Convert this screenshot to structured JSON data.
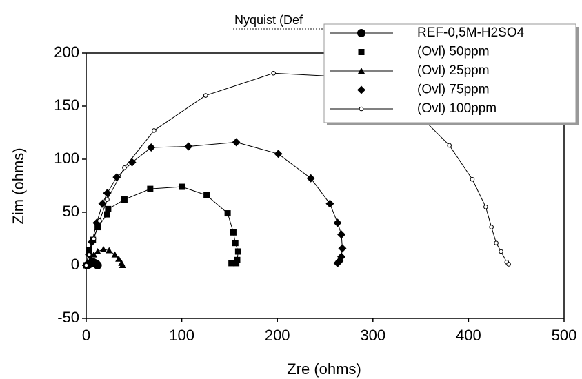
{
  "chart_data": {
    "type": "line",
    "title": "Nyquist (Def",
    "x_label": "Zre (ohms)",
    "y_label": "Zim (ohms)",
    "xlim": [
      0,
      500
    ],
    "xticks": [
      0,
      100,
      200,
      300,
      400,
      500
    ],
    "ylim": [
      -50,
      200
    ],
    "yticks": [
      -50,
      0,
      50,
      100,
      150,
      200
    ],
    "legend": "upper right",
    "series": [
      {
        "name": "REF-0,5M-H2SO4",
        "color": "#000000",
        "marker": "circle",
        "x": [
          1,
          3,
          5,
          7,
          9,
          11,
          12
        ],
        "values": [
          0,
          1,
          2,
          3,
          2,
          1,
          0
        ]
      },
      {
        "name": "(Ovl) 50ppm",
        "color": "#000000",
        "marker": "square",
        "x": [
          0,
          3,
          7,
          12,
          22,
          23,
          40,
          67,
          100,
          126,
          148,
          154,
          156,
          159,
          158,
          157,
          152
        ],
        "values": [
          0,
          14,
          24,
          36,
          48,
          53,
          62,
          72,
          74,
          66,
          49,
          31,
          21,
          13,
          5,
          2,
          2
        ]
      },
      {
        "name": "(Ovl) 25ppm",
        "color": "#000000",
        "marker": "triangle",
        "x": [
          2,
          5,
          8,
          12,
          18,
          24,
          30,
          34,
          37,
          38
        ],
        "values": [
          2,
          6,
          10,
          13,
          15,
          14,
          10,
          6,
          2,
          0
        ]
      },
      {
        "name": "(Ovl) 75ppm",
        "color": "#000000",
        "marker": "diamond",
        "x": [
          0,
          3,
          6,
          11,
          17,
          22,
          32,
          48,
          68,
          107,
          157,
          201,
          235,
          255,
          263,
          267,
          268,
          267,
          265,
          263
        ],
        "values": [
          0,
          10,
          22,
          40,
          58,
          68,
          83,
          97,
          111,
          112,
          116,
          105,
          82,
          58,
          40,
          29,
          16,
          8,
          4,
          2
        ]
      },
      {
        "name": "(Ovl) 100ppm",
        "color": "#000000",
        "marker": "open-circle",
        "x": [
          0,
          3,
          8,
          14,
          22,
          40,
          71,
          125,
          196,
          260,
          320,
          350,
          380,
          404,
          418,
          424,
          429,
          434,
          440,
          442
        ],
        "values": [
          0,
          10,
          25,
          42,
          62,
          92,
          127,
          160,
          181,
          178,
          160,
          140,
          113,
          81,
          55,
          36,
          21,
          13,
          3,
          1
        ]
      }
    ]
  }
}
